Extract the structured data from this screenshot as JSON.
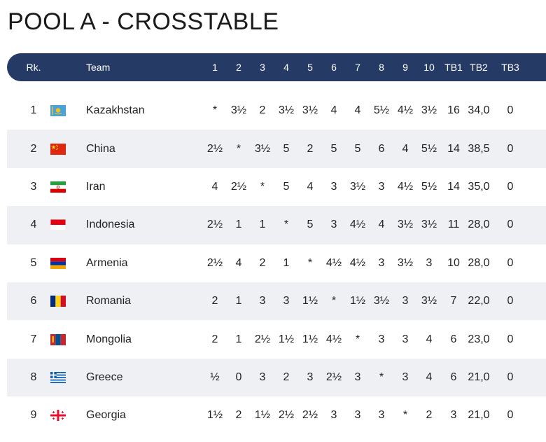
{
  "title": "POOL A - CROSSTABLE",
  "headers": {
    "rank": "Rk.",
    "team": "Team",
    "rounds": [
      "1",
      "2",
      "3",
      "4",
      "5",
      "6",
      "7",
      "8",
      "9",
      "10"
    ],
    "tb1": "TB1",
    "tb2": "TB2",
    "tb3": "TB3"
  },
  "rows": [
    {
      "rank": "1",
      "team": "Kazakhstan",
      "flag": "kazakhstan-flag-icon",
      "results": [
        "*",
        "3½",
        "2",
        "3½",
        "3½",
        "4",
        "4",
        "5½",
        "4½",
        "3½"
      ],
      "tb1": "16",
      "tb2": "34,0",
      "tb3": "0"
    },
    {
      "rank": "2",
      "team": "China",
      "flag": "china-flag-icon",
      "results": [
        "2½",
        "*",
        "3½",
        "5",
        "2",
        "5",
        "5",
        "6",
        "4",
        "5½"
      ],
      "tb1": "14",
      "tb2": "38,5",
      "tb3": "0"
    },
    {
      "rank": "3",
      "team": "Iran",
      "flag": "iran-flag-icon",
      "results": [
        "4",
        "2½",
        "*",
        "5",
        "4",
        "3",
        "3½",
        "3",
        "4½",
        "5½"
      ],
      "tb1": "14",
      "tb2": "35,0",
      "tb3": "0"
    },
    {
      "rank": "4",
      "team": "Indonesia",
      "flag": "indonesia-flag-icon",
      "results": [
        "2½",
        "1",
        "1",
        "*",
        "5",
        "3",
        "4½",
        "4",
        "3½",
        "3½"
      ],
      "tb1": "11",
      "tb2": "28,0",
      "tb3": "0"
    },
    {
      "rank": "5",
      "team": "Armenia",
      "flag": "armenia-flag-icon",
      "results": [
        "2½",
        "4",
        "2",
        "1",
        "*",
        "4½",
        "4½",
        "3",
        "3½",
        "3"
      ],
      "tb1": "10",
      "tb2": "28,0",
      "tb3": "0"
    },
    {
      "rank": "6",
      "team": "Romania",
      "flag": "romania-flag-icon",
      "results": [
        "2",
        "1",
        "3",
        "3",
        "1½",
        "*",
        "1½",
        "3½",
        "3",
        "3½"
      ],
      "tb1": "7",
      "tb2": "22,0",
      "tb3": "0"
    },
    {
      "rank": "7",
      "team": "Mongolia",
      "flag": "mongolia-flag-icon",
      "results": [
        "2",
        "1",
        "2½",
        "1½",
        "1½",
        "4½",
        "*",
        "3",
        "3",
        "4"
      ],
      "tb1": "6",
      "tb2": "23,0",
      "tb3": "0"
    },
    {
      "rank": "8",
      "team": "Greece",
      "flag": "greece-flag-icon",
      "results": [
        "½",
        "0",
        "3",
        "2",
        "3",
        "2½",
        "3",
        "*",
        "3",
        "4"
      ],
      "tb1": "6",
      "tb2": "21,0",
      "tb3": "0"
    },
    {
      "rank": "9",
      "team": "Georgia",
      "flag": "georgia-flag-icon",
      "results": [
        "1½",
        "2",
        "1½",
        "2½",
        "2½",
        "3",
        "3",
        "3",
        "*",
        "2"
      ],
      "tb1": "3",
      "tb2": "21,0",
      "tb3": "0"
    }
  ]
}
